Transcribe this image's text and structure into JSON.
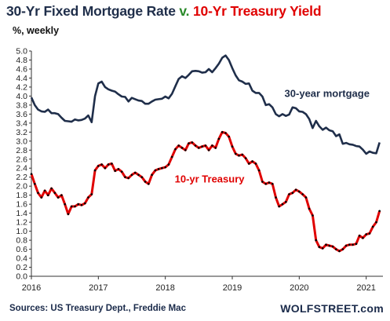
{
  "header": {
    "title_part1": "30-Yr Fixed Mortgage Rate",
    "title_part2": "v.",
    "title_part3": "10-Yr Treasury Yield",
    "subtitle": "%, weekly"
  },
  "footer": {
    "source": "Sources: US Treasury Dept., Freddie Mac",
    "brand": "WOLFSTREET.com"
  },
  "colors": {
    "mortgage": "#1f2e4a",
    "treasury_line": "#e00000",
    "treasury_dots": "#000000",
    "title_green": "#2a8a2a"
  },
  "chart_data": {
    "type": "line",
    "title": "30-Yr Fixed Mortgage Rate v. 10-Yr Treasury Yield",
    "subtitle": "%, weekly",
    "xlabel": "",
    "ylabel": "",
    "xlim": [
      2016.0,
      2021.25
    ],
    "ylim": [
      0.0,
      5.0
    ],
    "x_ticks": [
      "2016",
      "2017",
      "2018",
      "2019",
      "2020",
      "2021"
    ],
    "y_ticks": [
      "0.0",
      "0.2",
      "0.4",
      "0.6",
      "0.8",
      "1.0",
      "1.2",
      "1.4",
      "1.6",
      "1.8",
      "2.0",
      "2.2",
      "2.4",
      "2.6",
      "2.8",
      "3.0",
      "3.2",
      "3.4",
      "3.6",
      "3.8",
      "4.0",
      "4.2",
      "4.4",
      "4.6",
      "4.8",
      "5.0"
    ],
    "grid": false,
    "legend": "none",
    "annotations": [
      "30-year mortgage",
      "10-yr Treasury"
    ],
    "series": [
      {
        "name": "30-year mortgage",
        "x": [
          2016.0,
          2016.05,
          2016.1,
          2016.15,
          2016.2,
          2016.25,
          2016.3,
          2016.35,
          2016.4,
          2016.45,
          2016.5,
          2016.55,
          2016.6,
          2016.65,
          2016.7,
          2016.75,
          2016.8,
          2016.85,
          2016.9,
          2016.95,
          2017.0,
          2017.05,
          2017.1,
          2017.15,
          2017.2,
          2017.25,
          2017.3,
          2017.35,
          2017.4,
          2017.45,
          2017.5,
          2017.55,
          2017.6,
          2017.65,
          2017.7,
          2017.75,
          2017.8,
          2017.85,
          2017.9,
          2017.95,
          2018.0,
          2018.05,
          2018.1,
          2018.15,
          2018.2,
          2018.25,
          2018.3,
          2018.35,
          2018.4,
          2018.45,
          2018.5,
          2018.55,
          2018.6,
          2018.65,
          2018.7,
          2018.75,
          2018.8,
          2018.85,
          2018.9,
          2018.95,
          2019.0,
          2019.05,
          2019.1,
          2019.15,
          2019.2,
          2019.25,
          2019.3,
          2019.35,
          2019.4,
          2019.45,
          2019.5,
          2019.55,
          2019.6,
          2019.65,
          2019.7,
          2019.75,
          2019.8,
          2019.85,
          2019.9,
          2019.95,
          2020.0,
          2020.05,
          2020.1,
          2020.15,
          2020.2,
          2020.25,
          2020.3,
          2020.35,
          2020.4,
          2020.45,
          2020.5,
          2020.55,
          2020.6,
          2020.65,
          2020.7,
          2020.75,
          2020.8,
          2020.85,
          2020.9,
          2020.95,
          2021.0,
          2021.05,
          2021.1,
          2021.15,
          2021.2
        ],
        "values": [
          3.97,
          3.8,
          3.7,
          3.66,
          3.65,
          3.7,
          3.62,
          3.62,
          3.6,
          3.52,
          3.45,
          3.44,
          3.43,
          3.48,
          3.46,
          3.47,
          3.5,
          3.57,
          3.42,
          4.0,
          4.28,
          4.32,
          4.2,
          4.15,
          4.12,
          4.1,
          4.04,
          3.99,
          3.98,
          3.88,
          3.96,
          3.93,
          3.9,
          3.89,
          3.83,
          3.83,
          3.88,
          3.92,
          3.93,
          3.94,
          3.99,
          3.95,
          4.05,
          4.22,
          4.38,
          4.44,
          4.4,
          4.47,
          4.55,
          4.56,
          4.55,
          4.52,
          4.53,
          4.6,
          4.53,
          4.62,
          4.72,
          4.85,
          4.9,
          4.8,
          4.62,
          4.46,
          4.35,
          4.32,
          4.27,
          4.28,
          4.12,
          4.07,
          4.07,
          3.99,
          3.8,
          3.82,
          3.75,
          3.6,
          3.55,
          3.6,
          3.56,
          3.59,
          3.75,
          3.73,
          3.66,
          3.65,
          3.6,
          3.49,
          3.29,
          3.45,
          3.33,
          3.25,
          3.3,
          3.24,
          3.22,
          3.11,
          3.15,
          2.94,
          2.96,
          2.93,
          2.92,
          2.89,
          2.88,
          2.81,
          2.72,
          2.77,
          2.74,
          2.73,
          2.97
        ]
      },
      {
        "name": "10-yr Treasury",
        "x": [
          2016.0,
          2016.05,
          2016.1,
          2016.15,
          2016.2,
          2016.25,
          2016.3,
          2016.35,
          2016.4,
          2016.45,
          2016.5,
          2016.55,
          2016.6,
          2016.65,
          2016.7,
          2016.75,
          2016.8,
          2016.85,
          2016.9,
          2016.95,
          2017.0,
          2017.05,
          2017.1,
          2017.15,
          2017.2,
          2017.25,
          2017.3,
          2017.35,
          2017.4,
          2017.45,
          2017.5,
          2017.55,
          2017.6,
          2017.65,
          2017.7,
          2017.75,
          2017.8,
          2017.85,
          2017.9,
          2017.95,
          2018.0,
          2018.05,
          2018.1,
          2018.15,
          2018.2,
          2018.25,
          2018.3,
          2018.35,
          2018.4,
          2018.45,
          2018.5,
          2018.55,
          2018.6,
          2018.65,
          2018.7,
          2018.75,
          2018.8,
          2018.85,
          2018.9,
          2018.95,
          2019.0,
          2019.05,
          2019.1,
          2019.15,
          2019.2,
          2019.25,
          2019.3,
          2019.35,
          2019.4,
          2019.45,
          2019.5,
          2019.55,
          2019.6,
          2019.65,
          2019.7,
          2019.75,
          2019.8,
          2019.85,
          2019.9,
          2019.95,
          2020.0,
          2020.05,
          2020.1,
          2020.15,
          2020.2,
          2020.25,
          2020.3,
          2020.35,
          2020.4,
          2020.45,
          2020.5,
          2020.55,
          2020.6,
          2020.65,
          2020.7,
          2020.75,
          2020.8,
          2020.85,
          2020.9,
          2020.95,
          2021.0,
          2021.05,
          2021.1,
          2021.15,
          2021.2
        ],
        "values": [
          2.27,
          2.05,
          1.85,
          1.75,
          1.9,
          1.8,
          1.95,
          1.85,
          1.75,
          1.8,
          1.6,
          1.38,
          1.55,
          1.55,
          1.6,
          1.58,
          1.62,
          1.75,
          1.82,
          2.35,
          2.45,
          2.48,
          2.4,
          2.48,
          2.5,
          2.34,
          2.38,
          2.32,
          2.2,
          2.18,
          2.25,
          2.3,
          2.25,
          2.2,
          2.1,
          2.05,
          2.25,
          2.35,
          2.38,
          2.4,
          2.42,
          2.48,
          2.65,
          2.82,
          2.9,
          2.85,
          2.8,
          2.95,
          2.97,
          2.9,
          2.85,
          2.88,
          2.9,
          2.8,
          2.9,
          2.85,
          3.05,
          3.2,
          3.18,
          3.1,
          2.88,
          2.72,
          2.68,
          2.7,
          2.62,
          2.5,
          2.55,
          2.5,
          2.35,
          2.1,
          2.05,
          2.08,
          2.05,
          1.75,
          1.55,
          1.6,
          1.65,
          1.82,
          1.85,
          1.92,
          1.88,
          1.82,
          1.75,
          1.5,
          1.35,
          0.8,
          0.65,
          0.62,
          0.7,
          0.68,
          0.66,
          0.6,
          0.56,
          0.6,
          0.68,
          0.7,
          0.7,
          0.72,
          0.9,
          0.85,
          0.93,
          0.95,
          1.1,
          1.2,
          1.45
        ]
      }
    ]
  }
}
